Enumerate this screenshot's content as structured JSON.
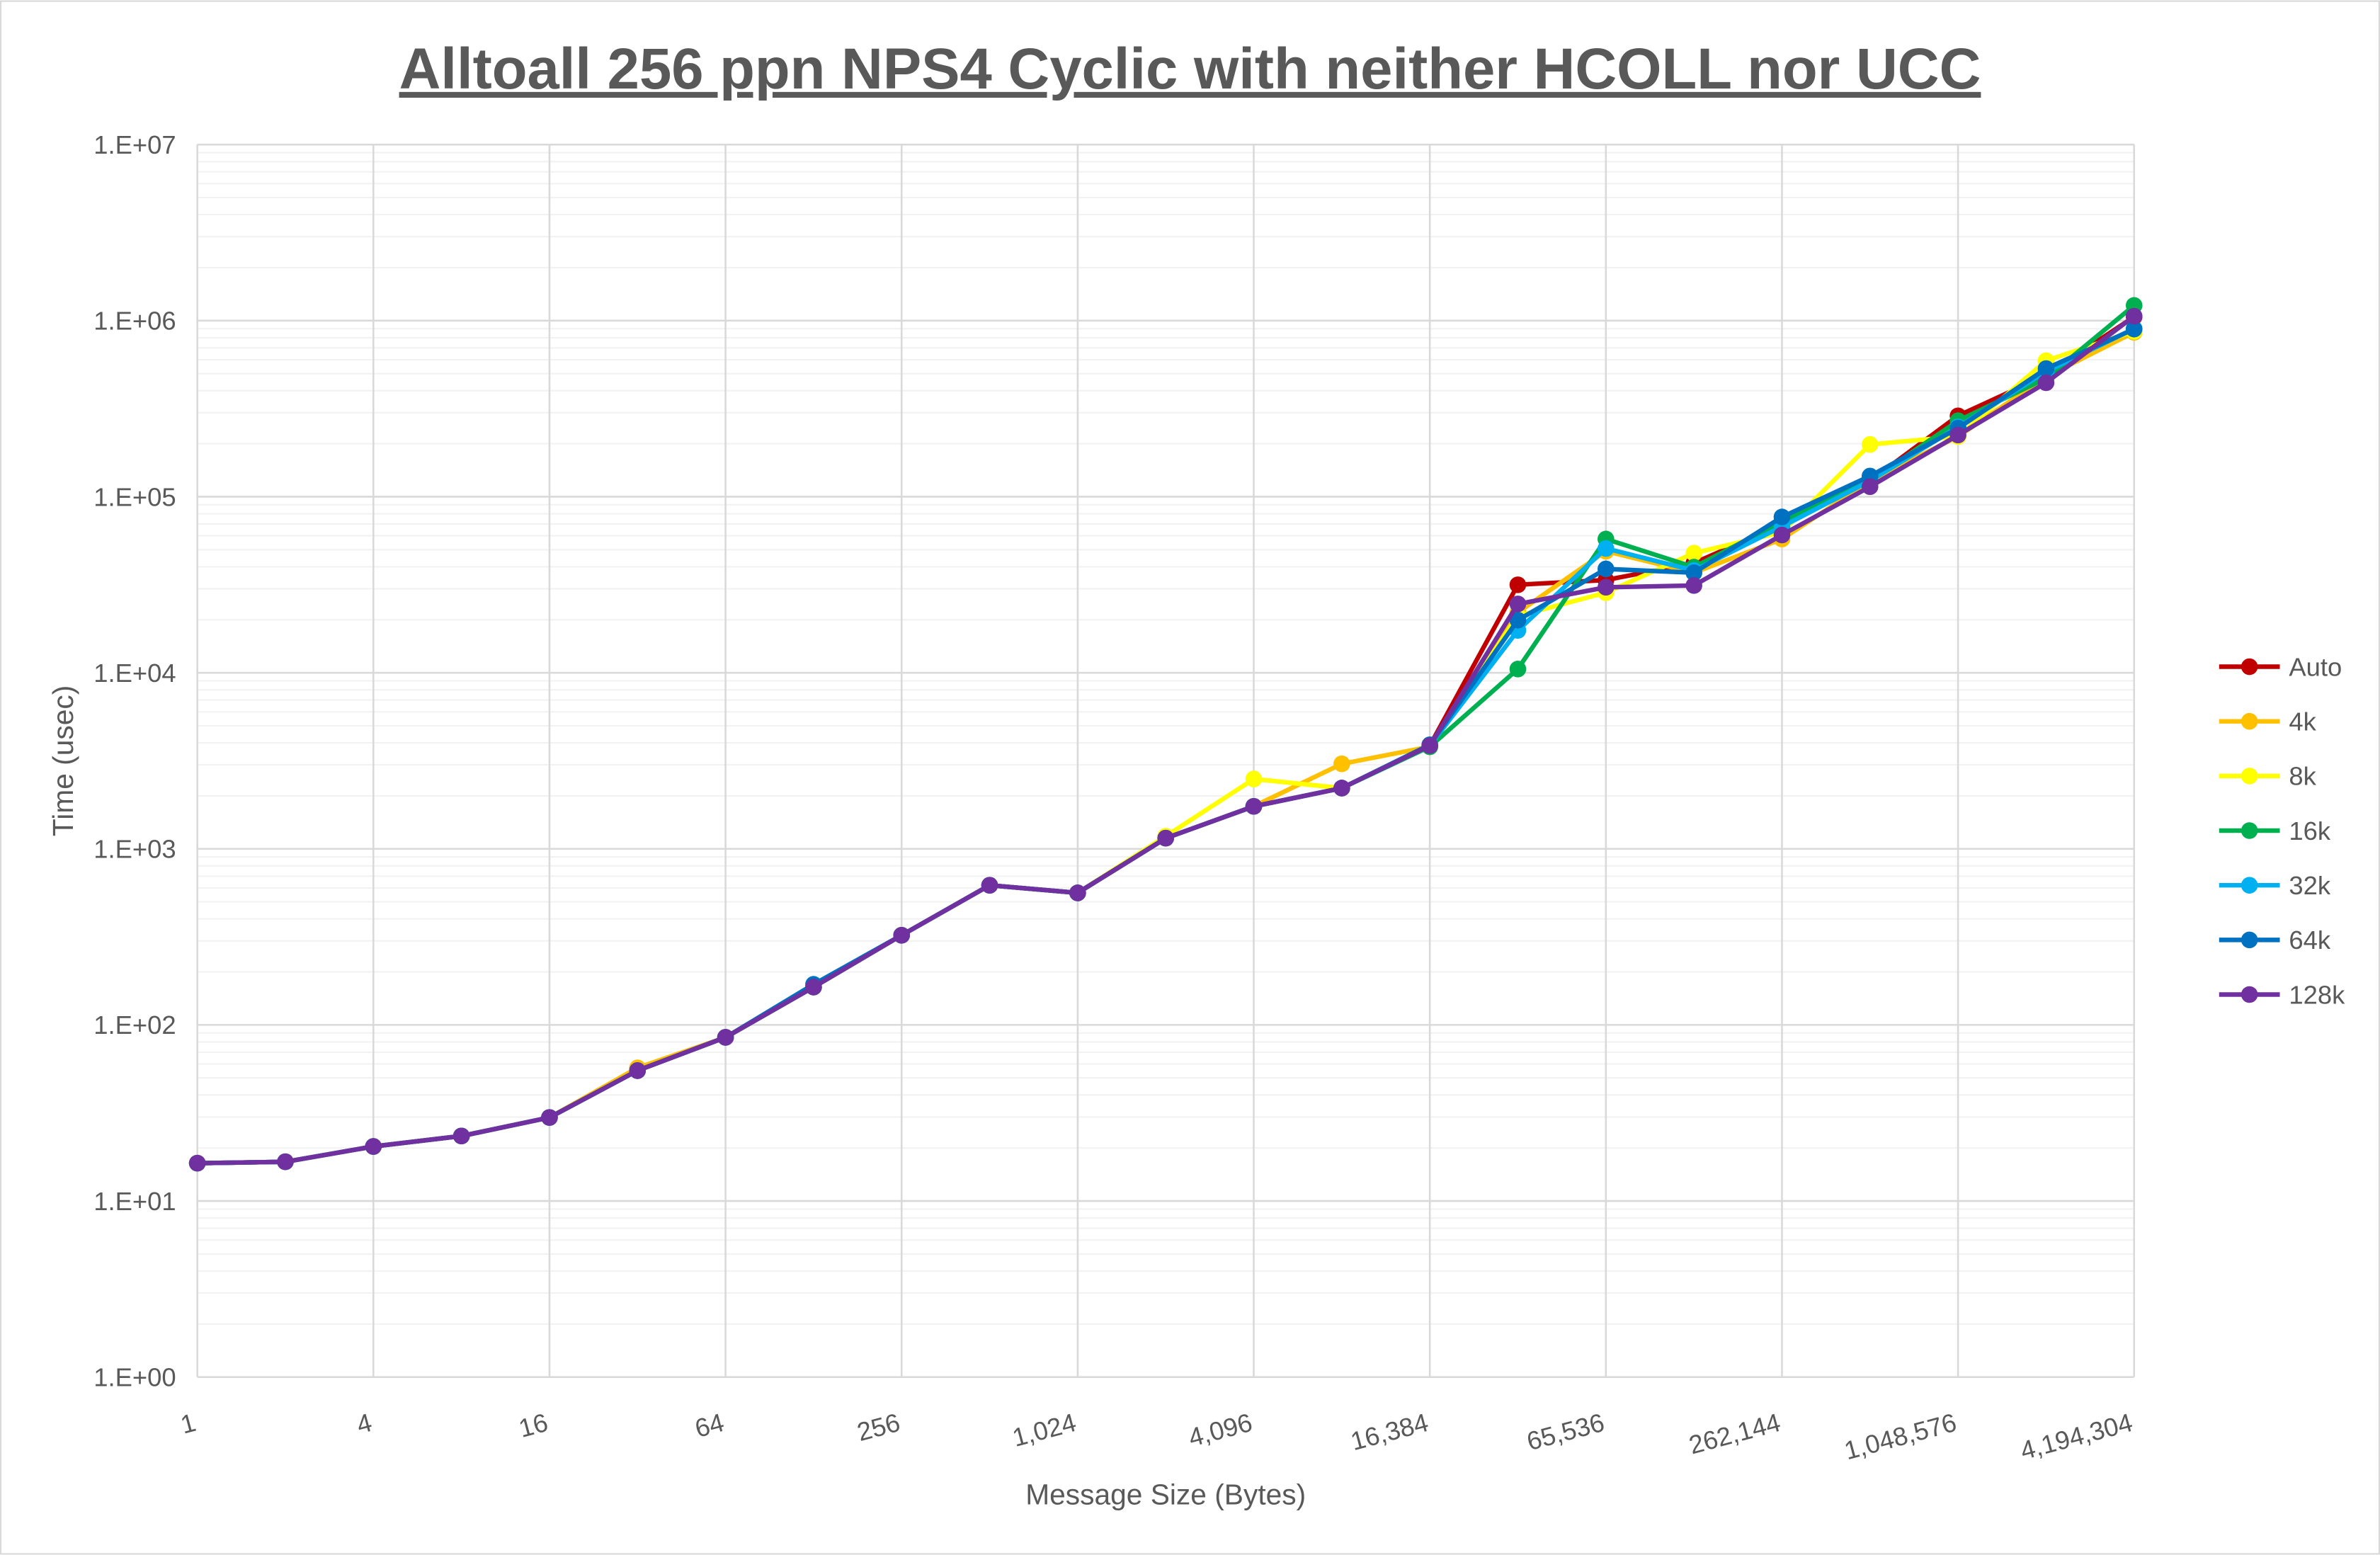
{
  "chart_data": {
    "type": "line",
    "title": "Alltoall 256 ppn NPS4 Cyclic with neither HCOLL nor UCC",
    "xlabel": "Message Size (Bytes)",
    "ylabel": "Time (usec)",
    "x_scale": "log2",
    "y_scale": "log10",
    "ylim": [
      1,
      10000000
    ],
    "grid": true,
    "legend_position": "right",
    "x": [
      1,
      2,
      4,
      8,
      16,
      32,
      64,
      128,
      256,
      512,
      1024,
      2048,
      4096,
      8192,
      16384,
      32768,
      65536,
      131072,
      262144,
      524288,
      1048576,
      2097152,
      4194304
    ],
    "x_tick_labels": [
      "1",
      "4",
      "16",
      "64",
      "256",
      "1,024",
      "4,096",
      "16,384",
      "65,536",
      "262,144",
      "1,048,576",
      "4,194,304"
    ],
    "y_tick_labels": [
      "1.E+00",
      "1.E+01",
      "1.E+02",
      "1.E+03",
      "1.E+04",
      "1.E+05",
      "1.E+06",
      "1.E+07"
    ],
    "series": [
      {
        "name": "Auto",
        "color": "#C00000",
        "values": [
          16.4,
          16.7,
          20.4,
          23.4,
          29.8,
          55,
          85,
          164,
          323,
          621,
          562,
          1150,
          1743,
          2213,
          3856,
          31600,
          33600,
          42000,
          69200,
          123000,
          288000,
          490000,
          1050000
        ]
      },
      {
        "name": "4k",
        "color": "#FFC000",
        "values": [
          16.4,
          16.7,
          20.4,
          23.4,
          29.8,
          57,
          85,
          164,
          323,
          621,
          562,
          1150,
          1743,
          3040,
          3800,
          22000,
          49000,
          37000,
          57500,
          123000,
          220000,
          480000,
          858000
        ]
      },
      {
        "name": "8k",
        "color": "#FFFF00",
        "values": [
          16.4,
          16.7,
          20.4,
          23.4,
          29.8,
          55,
          85,
          164,
          323,
          621,
          562,
          1180,
          2494,
          2213,
          3856,
          21000,
          28500,
          47800,
          63000,
          198000,
          220000,
          592000,
          870000
        ]
      },
      {
        "name": "16k",
        "color": "#00B050",
        "values": [
          16.4,
          16.7,
          20.4,
          23.4,
          29.8,
          55,
          85,
          164,
          323,
          621,
          562,
          1150,
          1743,
          2213,
          3800,
          10500,
          57500,
          39800,
          72000,
          123000,
          270000,
          470000,
          1220000
        ]
      },
      {
        "name": "32k",
        "color": "#00B0F0",
        "values": [
          16.4,
          16.7,
          20.4,
          23.4,
          29.8,
          55,
          85,
          164,
          323,
          621,
          562,
          1150,
          1743,
          2213,
          3856,
          17400,
          50800,
          38100,
          67600,
          123000,
          249000,
          513000,
          900000
        ]
      },
      {
        "name": "64k",
        "color": "#0070C0",
        "values": [
          16.4,
          16.7,
          20.4,
          23.4,
          29.8,
          55,
          85,
          170,
          323,
          621,
          562,
          1150,
          1743,
          2213,
          3900,
          19900,
          38900,
          37000,
          76700,
          131000,
          245000,
          534000,
          895000
        ]
      },
      {
        "name": "128k",
        "color": "#7030A0",
        "values": [
          16.4,
          16.7,
          20.4,
          23.4,
          29.8,
          55,
          85,
          164,
          323,
          621,
          562,
          1150,
          1743,
          2213,
          3856,
          24600,
          30600,
          31300,
          60600,
          114000,
          224000,
          444000,
          1060000
        ]
      }
    ]
  }
}
